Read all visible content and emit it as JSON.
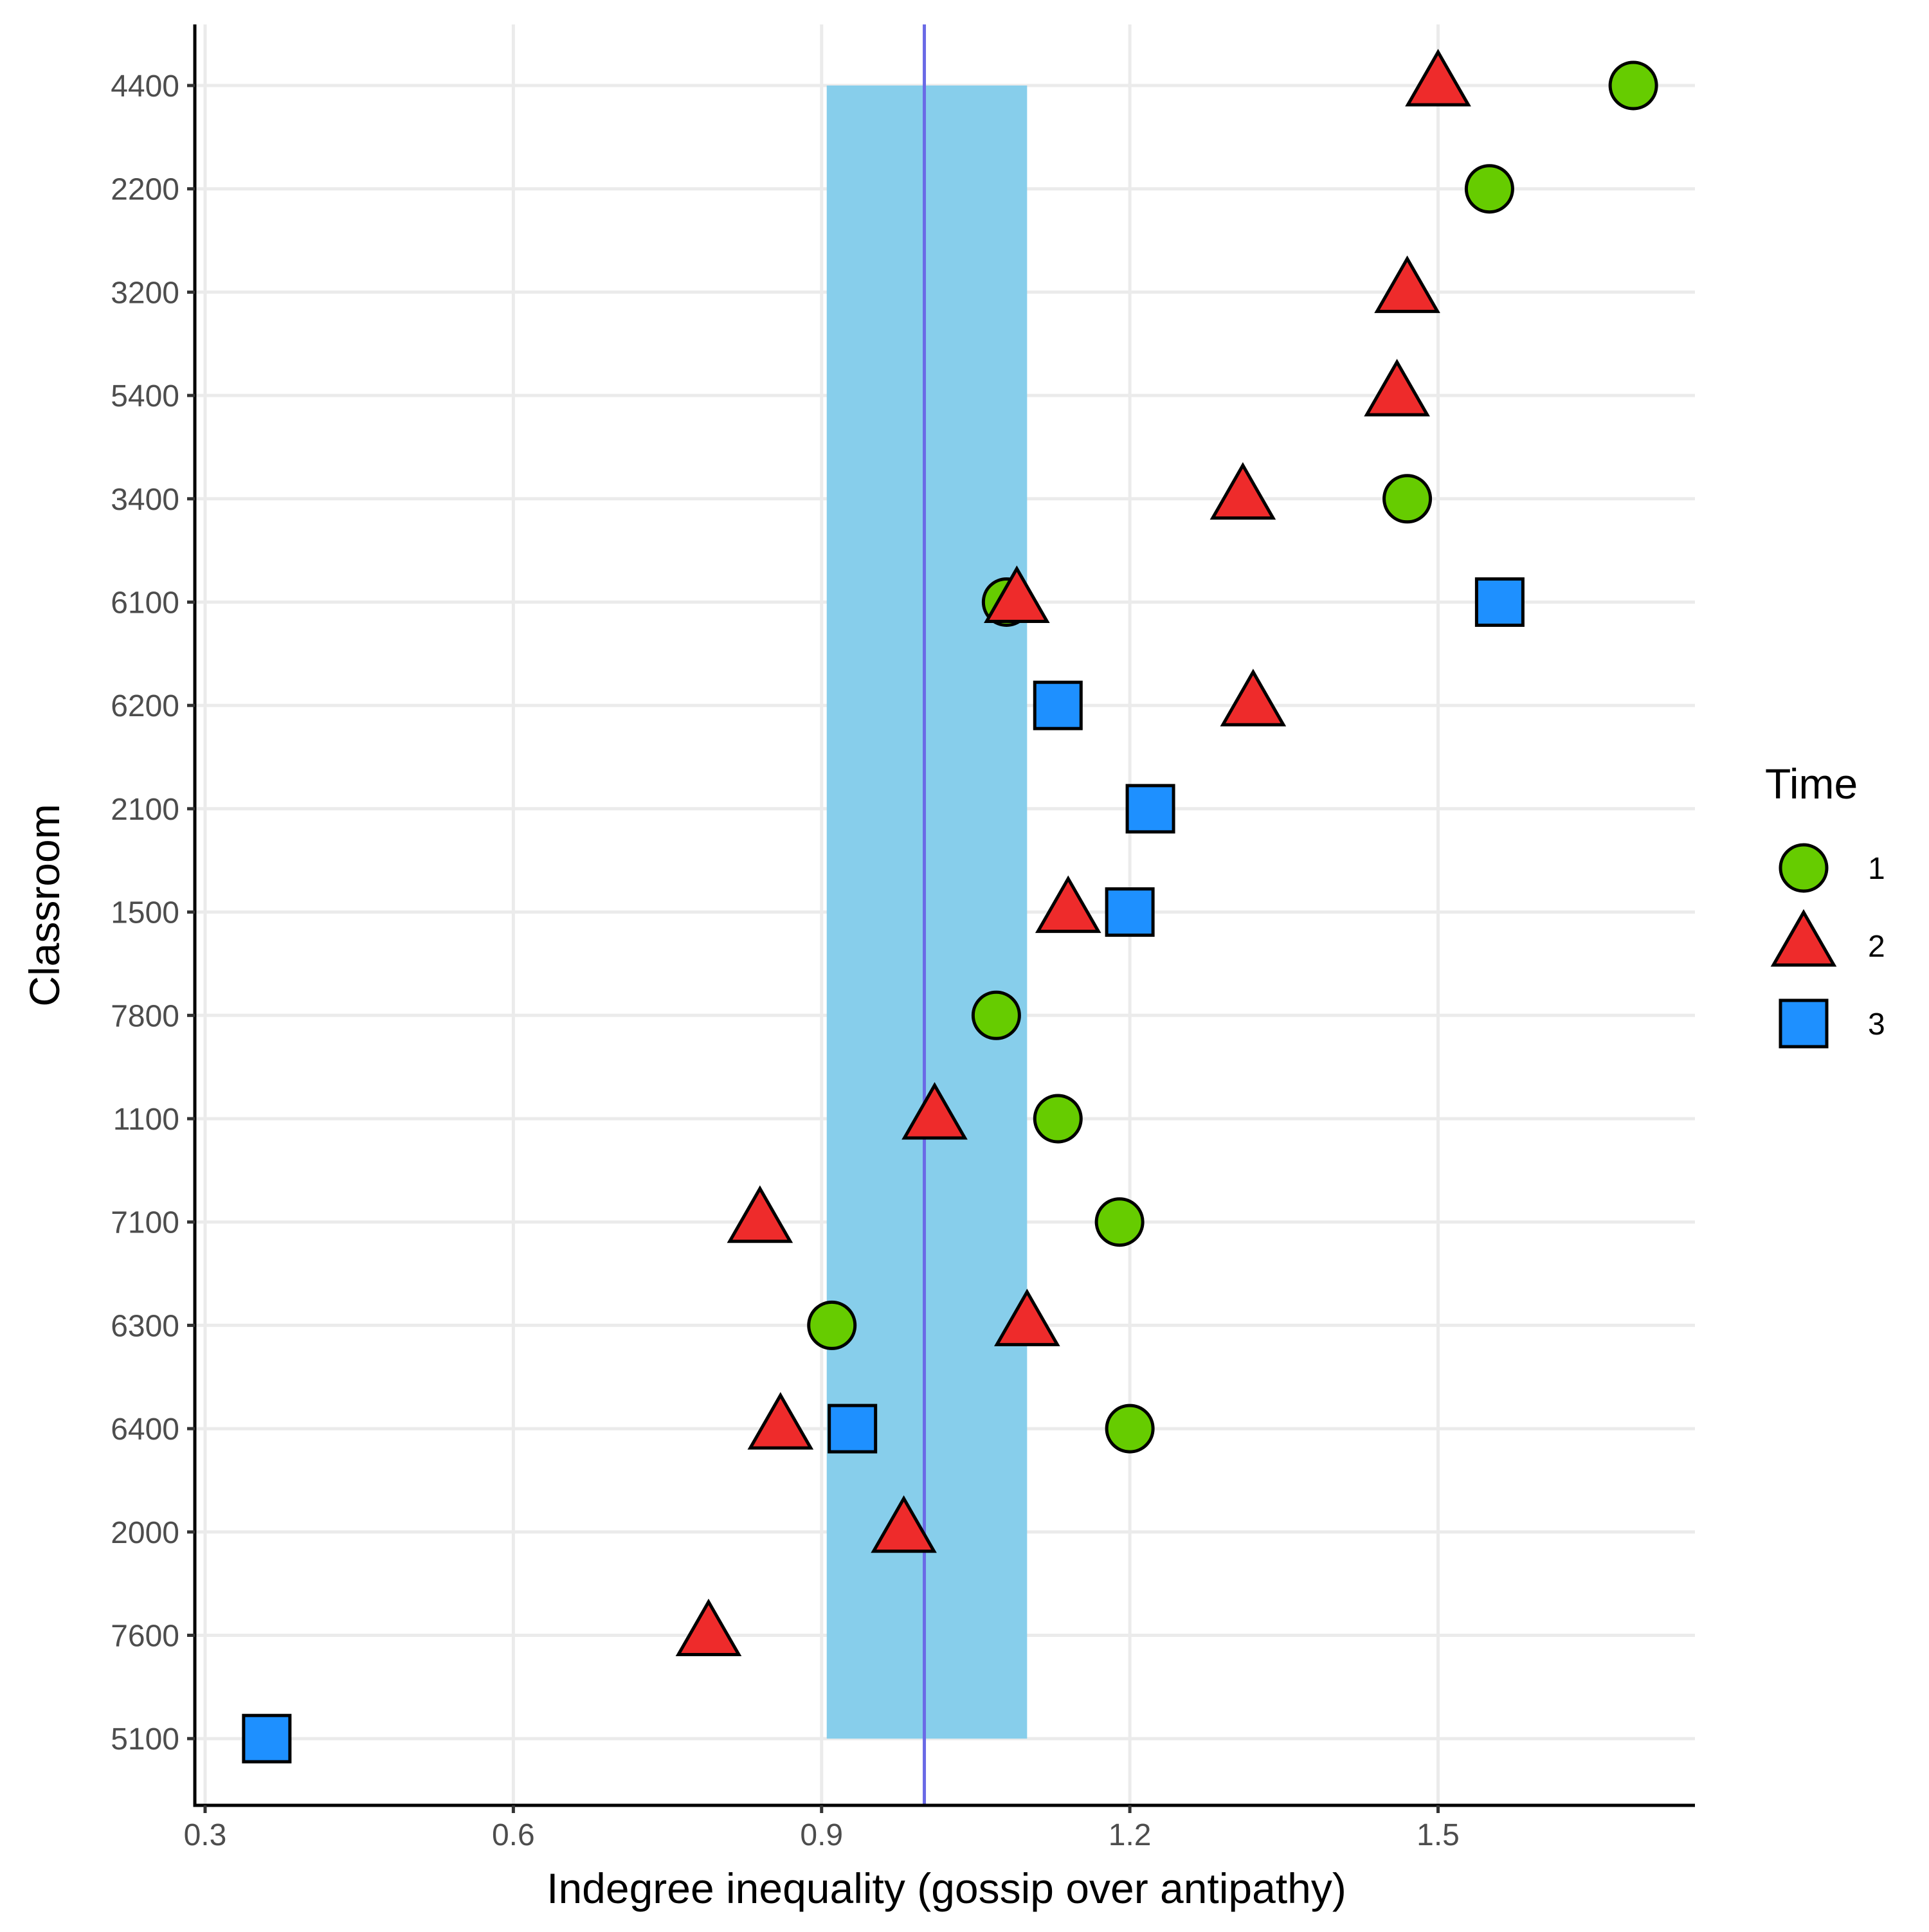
{
  "chart_data": {
    "type": "scatter",
    "xlabel": "Indegree inequality (gossip over antipathy)",
    "ylabel": "Classroom",
    "xlim": [
      0.29,
      1.75
    ],
    "x_ticks": [
      0.3,
      0.6,
      0.9,
      1.2,
      1.5
    ],
    "x_tick_labels": [
      "0.3",
      "0.6",
      "0.9",
      "1.2",
      "1.5"
    ],
    "categories": [
      "4400",
      "2200",
      "3200",
      "5400",
      "3400",
      "6100",
      "6200",
      "2100",
      "1500",
      "7800",
      "1100",
      "7100",
      "6300",
      "6400",
      "2000",
      "7600",
      "5100"
    ],
    "grid": true,
    "reference_line": {
      "x": 1.0,
      "color": "#6a6ae6"
    },
    "reference_band": {
      "x_from": 0.905,
      "x_to": 1.1,
      "y_from": "4400",
      "y_to": "5100",
      "color": "#87ceeb"
    },
    "legend": {
      "title": "Time",
      "placement": "right",
      "entries": [
        {
          "label": "1",
          "shape": "circle",
          "color": "#66cc00"
        },
        {
          "label": "2",
          "shape": "triangle",
          "color": "#ee2b2b"
        },
        {
          "label": "3",
          "shape": "square",
          "color": "#1e90ff"
        }
      ]
    },
    "series": [
      {
        "name": "1",
        "shape": "circle",
        "color": "#66cc00",
        "points": [
          {
            "x": 1.69,
            "y": "4400"
          },
          {
            "x": 1.55,
            "y": "2200"
          },
          {
            "x": 1.47,
            "y": "3400"
          },
          {
            "x": 1.08,
            "y": "6100"
          },
          {
            "x": 1.07,
            "y": "7800"
          },
          {
            "x": 1.13,
            "y": "1100"
          },
          {
            "x": 1.19,
            "y": "7100"
          },
          {
            "x": 0.91,
            "y": "6300"
          },
          {
            "x": 1.2,
            "y": "6400"
          }
        ]
      },
      {
        "name": "2",
        "shape": "triangle",
        "color": "#ee2b2b",
        "points": [
          {
            "x": 1.5,
            "y": "4400"
          },
          {
            "x": 1.47,
            "y": "3200"
          },
          {
            "x": 1.46,
            "y": "5400"
          },
          {
            "x": 1.31,
            "y": "3400"
          },
          {
            "x": 1.09,
            "y": "6100"
          },
          {
            "x": 1.32,
            "y": "6200"
          },
          {
            "x": 1.14,
            "y": "1500"
          },
          {
            "x": 1.01,
            "y": "1100"
          },
          {
            "x": 0.84,
            "y": "7100"
          },
          {
            "x": 1.1,
            "y": "6300"
          },
          {
            "x": 0.86,
            "y": "6400"
          },
          {
            "x": 0.98,
            "y": "2000"
          },
          {
            "x": 0.79,
            "y": "7600"
          }
        ]
      },
      {
        "name": "3",
        "shape": "square",
        "color": "#1e90ff",
        "points": [
          {
            "x": 1.56,
            "y": "6100"
          },
          {
            "x": 1.13,
            "y": "6200"
          },
          {
            "x": 1.22,
            "y": "2100"
          },
          {
            "x": 1.2,
            "y": "1500"
          },
          {
            "x": 0.93,
            "y": "6400"
          },
          {
            "x": 0.36,
            "y": "5100"
          }
        ]
      }
    ]
  }
}
